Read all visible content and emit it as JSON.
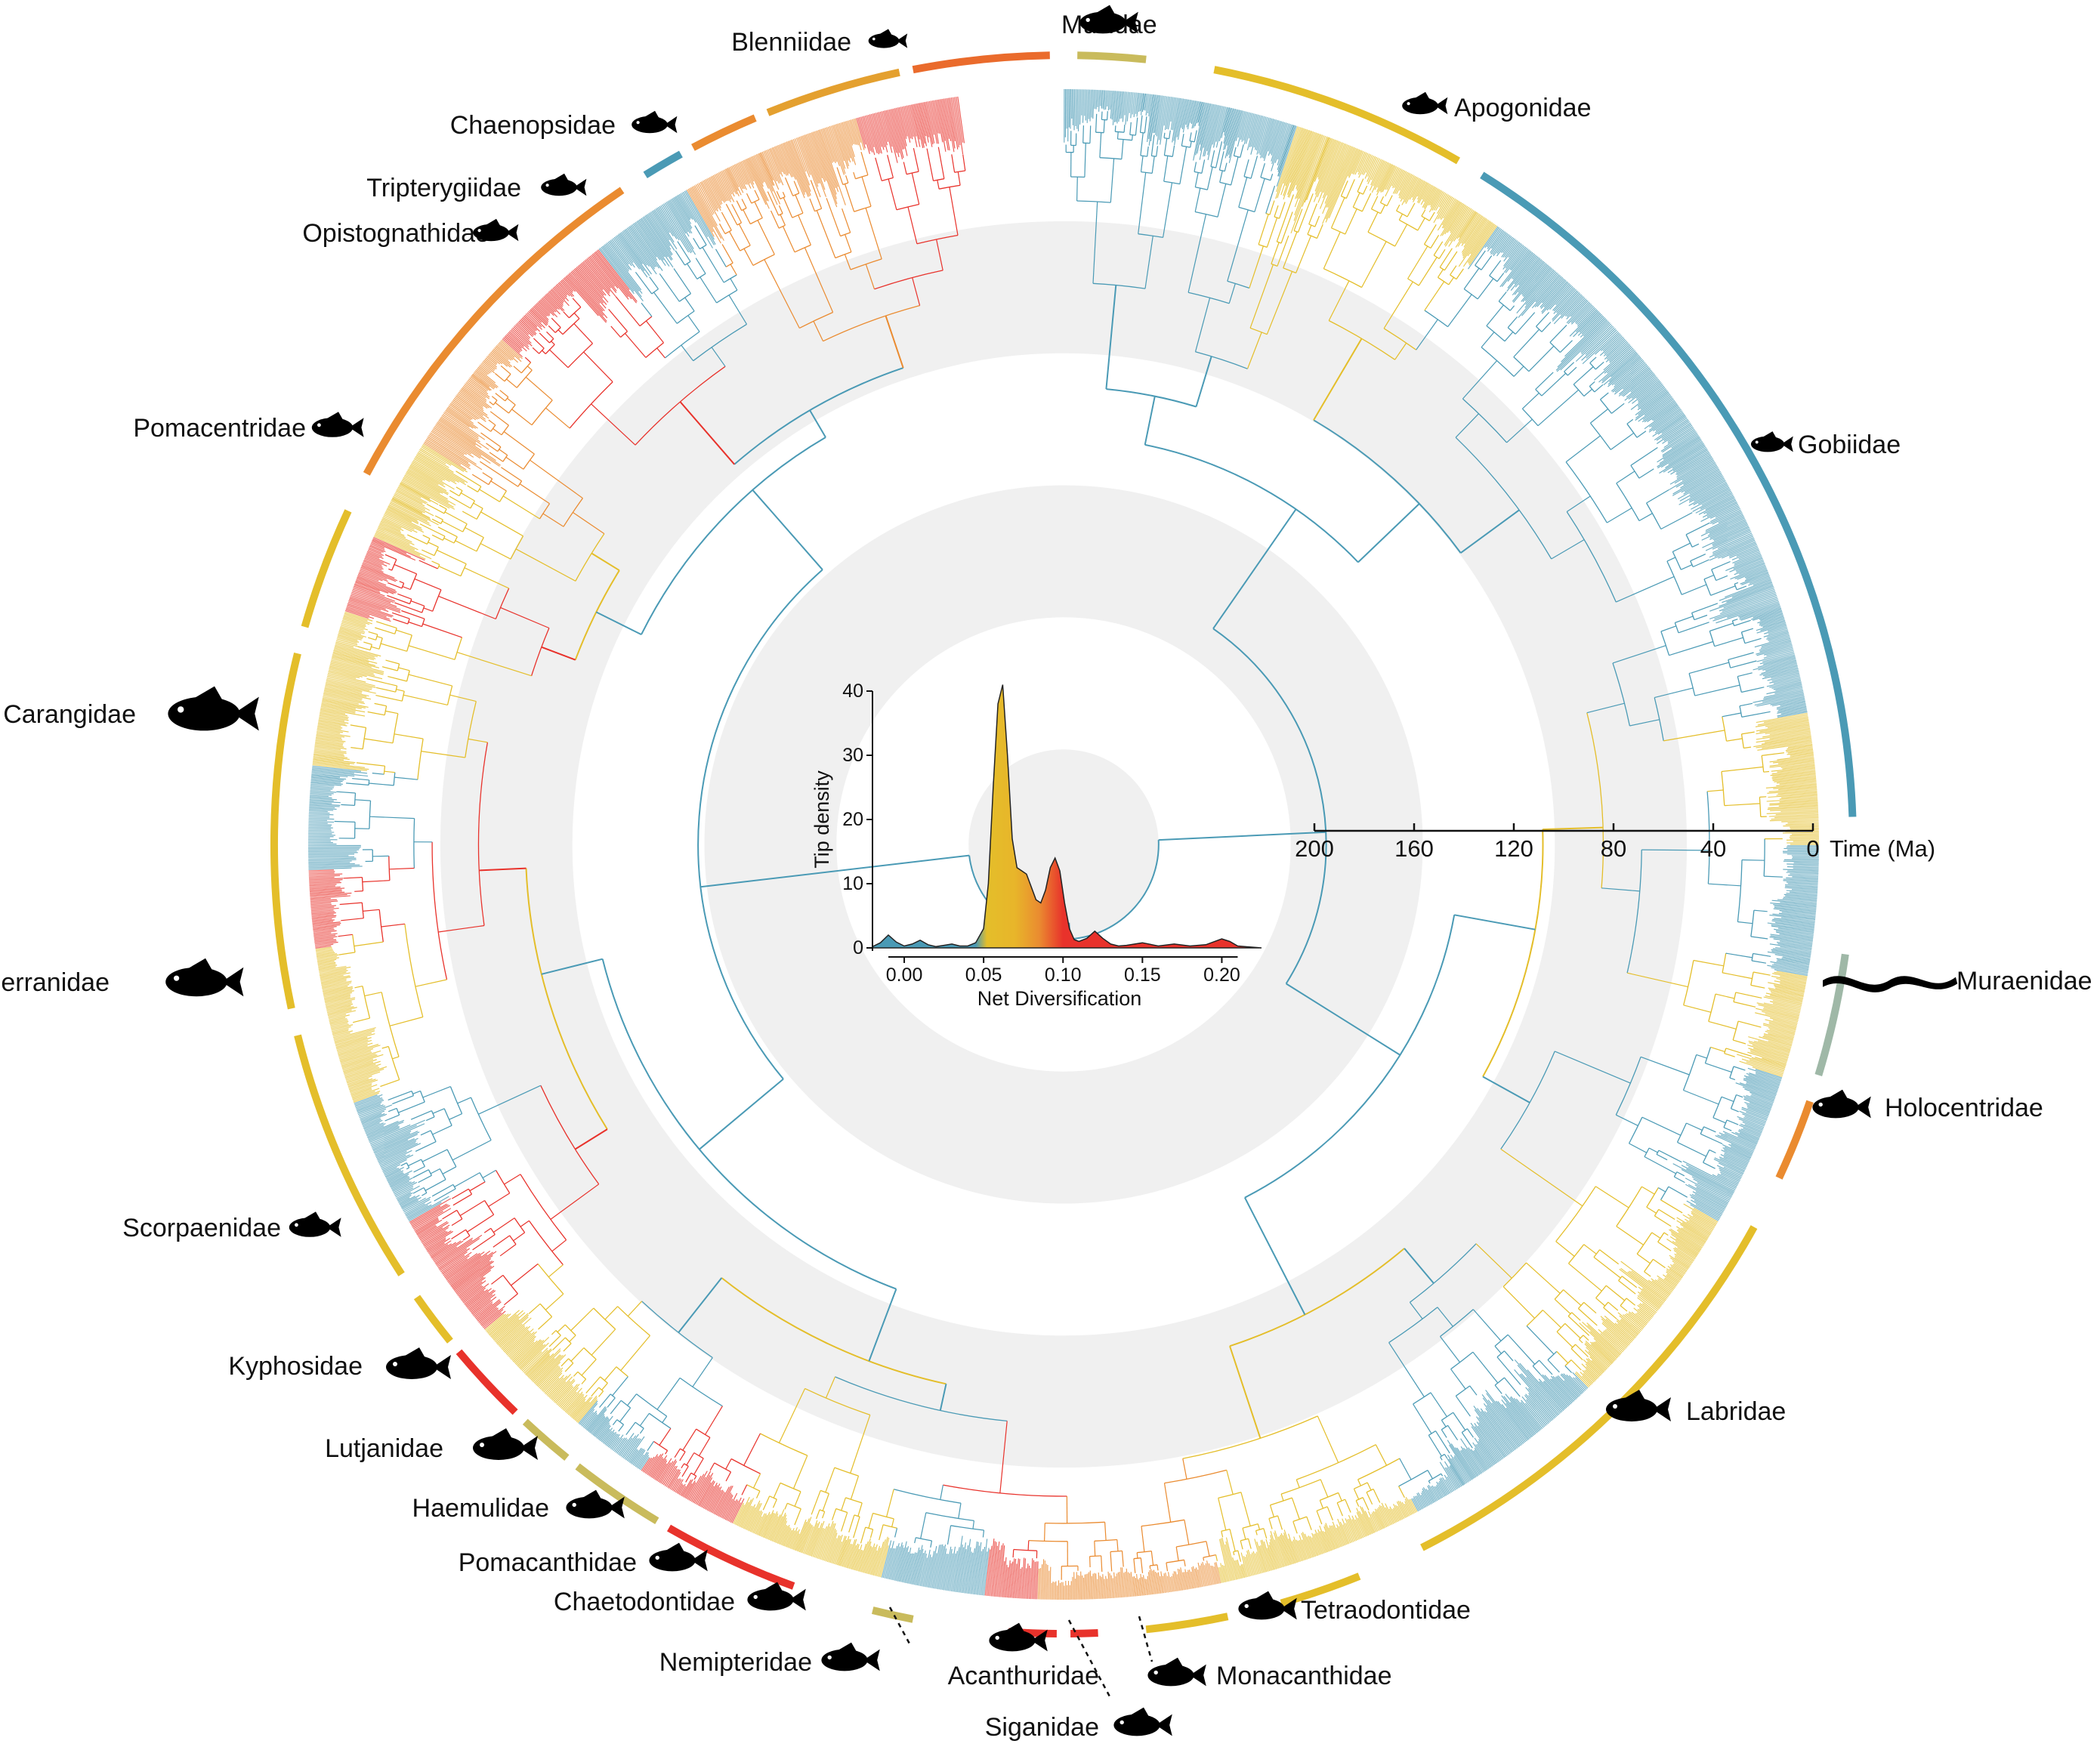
{
  "tree": {
    "ring_color": "#f0f0f0",
    "palette": {
      "blue": "#4a9ab5",
      "yellow": "#e4be2a",
      "orange": "#ea8b30",
      "red": "#e8322b",
      "sage": "#9fb8a7",
      "khaki": "#c9bb5c"
    }
  },
  "time_axis": {
    "ticks": [
      "200",
      "160",
      "120",
      "80",
      "40",
      "0"
    ],
    "label": "Time (Ma)"
  },
  "families": [
    {
      "name": "Mullidae",
      "icon": "goatfish-silhouette-icon",
      "color": "#c9bb5c"
    },
    {
      "name": "Apogonidae",
      "icon": "cardinalfish-silhouette-icon",
      "color": "#e4be2a"
    },
    {
      "name": "Gobiidae",
      "icon": "goby-silhouette-icon",
      "color": "#4a9ab5"
    },
    {
      "name": "Muraenidae",
      "icon": "moray-eel-silhouette-icon",
      "color": "#9fb8a7"
    },
    {
      "name": "Holocentridae",
      "icon": "squirrelfish-silhouette-icon",
      "color": "#ea8b30"
    },
    {
      "name": "Labridae",
      "icon": "wrasse-silhouette-icon",
      "color": "#e4be2a"
    },
    {
      "name": "Tetraodontidae",
      "icon": "pufferfish-silhouette-icon",
      "color": "#e4be2a"
    },
    {
      "name": "Monacanthidae",
      "icon": "filefish-silhouette-icon",
      "color": "#e4be2a"
    },
    {
      "name": "Siganidae",
      "icon": "rabbitfish-silhouette-icon",
      "color": "#e8322b"
    },
    {
      "name": "Acanthuridae",
      "icon": "surgeonfish-silhouette-icon",
      "color": "#e8322b"
    },
    {
      "name": "Nemipteridae",
      "icon": "threadfin-bream-silhouette-icon",
      "color": "#c9bb5c"
    },
    {
      "name": "Chaetodontidae",
      "icon": "butterflyfish-silhouette-icon",
      "color": "#e8322b"
    },
    {
      "name": "Pomacanthidae",
      "icon": "angelfish-silhouette-icon",
      "color": "#c9bb5c"
    },
    {
      "name": "Haemulidae",
      "icon": "grunt-silhouette-icon",
      "color": "#c9bb5c"
    },
    {
      "name": "Lutjanidae",
      "icon": "snapper-silhouette-icon",
      "color": "#e8322b"
    },
    {
      "name": "Kyphosidae",
      "icon": "sea-chub-silhouette-icon",
      "color": "#e4be2a"
    },
    {
      "name": "Scorpaenidae",
      "icon": "scorpionfish-silhouette-icon",
      "color": "#e4be2a"
    },
    {
      "name": "Serranidae",
      "icon": "grouper-silhouette-icon",
      "color": "#e4be2a"
    },
    {
      "name": "Carangidae",
      "icon": "jack-silhouette-icon",
      "color": "#e4be2a"
    },
    {
      "name": "Pomacentridae",
      "icon": "damselfish-silhouette-icon",
      "color": "#ea8b30"
    },
    {
      "name": "Opistognathidae",
      "icon": "jawfish-silhouette-icon",
      "color": "#4a9ab5"
    },
    {
      "name": "Tripterygiidae",
      "icon": "triplefin-silhouette-icon",
      "color": "#ea8b30"
    },
    {
      "name": "Chaenopsidae",
      "icon": "tube-blenny-silhouette-icon",
      "color": "#e4a02f"
    },
    {
      "name": "Blenniidae",
      "icon": "blenny-silhouette-icon",
      "color": "#ea6b2c"
    }
  ],
  "chart_data": {
    "type": "area",
    "xlabel": "Net Diversification",
    "ylabel": "Tip density",
    "xlim": [
      -0.02,
      0.225
    ],
    "ylim": [
      0,
      40
    ],
    "xticks": [
      "0.00",
      "0.05",
      "0.10",
      "0.15",
      "0.20"
    ],
    "yticks": [
      "0",
      "10",
      "20",
      "30",
      "40"
    ],
    "x": [
      -0.02,
      -0.015,
      -0.01,
      -0.005,
      0.0,
      0.005,
      0.01,
      0.015,
      0.02,
      0.025,
      0.03,
      0.035,
      0.04,
      0.045,
      0.05,
      0.053,
      0.056,
      0.059,
      0.062,
      0.065,
      0.068,
      0.071,
      0.074,
      0.077,
      0.08,
      0.083,
      0.086,
      0.089,
      0.092,
      0.095,
      0.098,
      0.101,
      0.104,
      0.107,
      0.11,
      0.115,
      0.12,
      0.125,
      0.13,
      0.135,
      0.14,
      0.15,
      0.16,
      0.17,
      0.18,
      0.19,
      0.2,
      0.205,
      0.21,
      0.225
    ],
    "values": [
      0.2,
      0.8,
      2.0,
      0.9,
      0.3,
      0.6,
      1.2,
      0.5,
      0.2,
      0.4,
      0.6,
      0.3,
      0.3,
      0.8,
      3.0,
      10.0,
      25.0,
      38.0,
      41.0,
      30.0,
      17.0,
      12.5,
      12.0,
      11.5,
      9.5,
      7.5,
      7.0,
      9.0,
      12.5,
      14.0,
      12.0,
      7.0,
      3.0,
      1.3,
      1.0,
      1.5,
      2.6,
      1.5,
      0.6,
      0.3,
      0.4,
      0.8,
      0.3,
      0.6,
      0.3,
      0.5,
      1.4,
      1.0,
      0.3,
      0.0
    ]
  }
}
